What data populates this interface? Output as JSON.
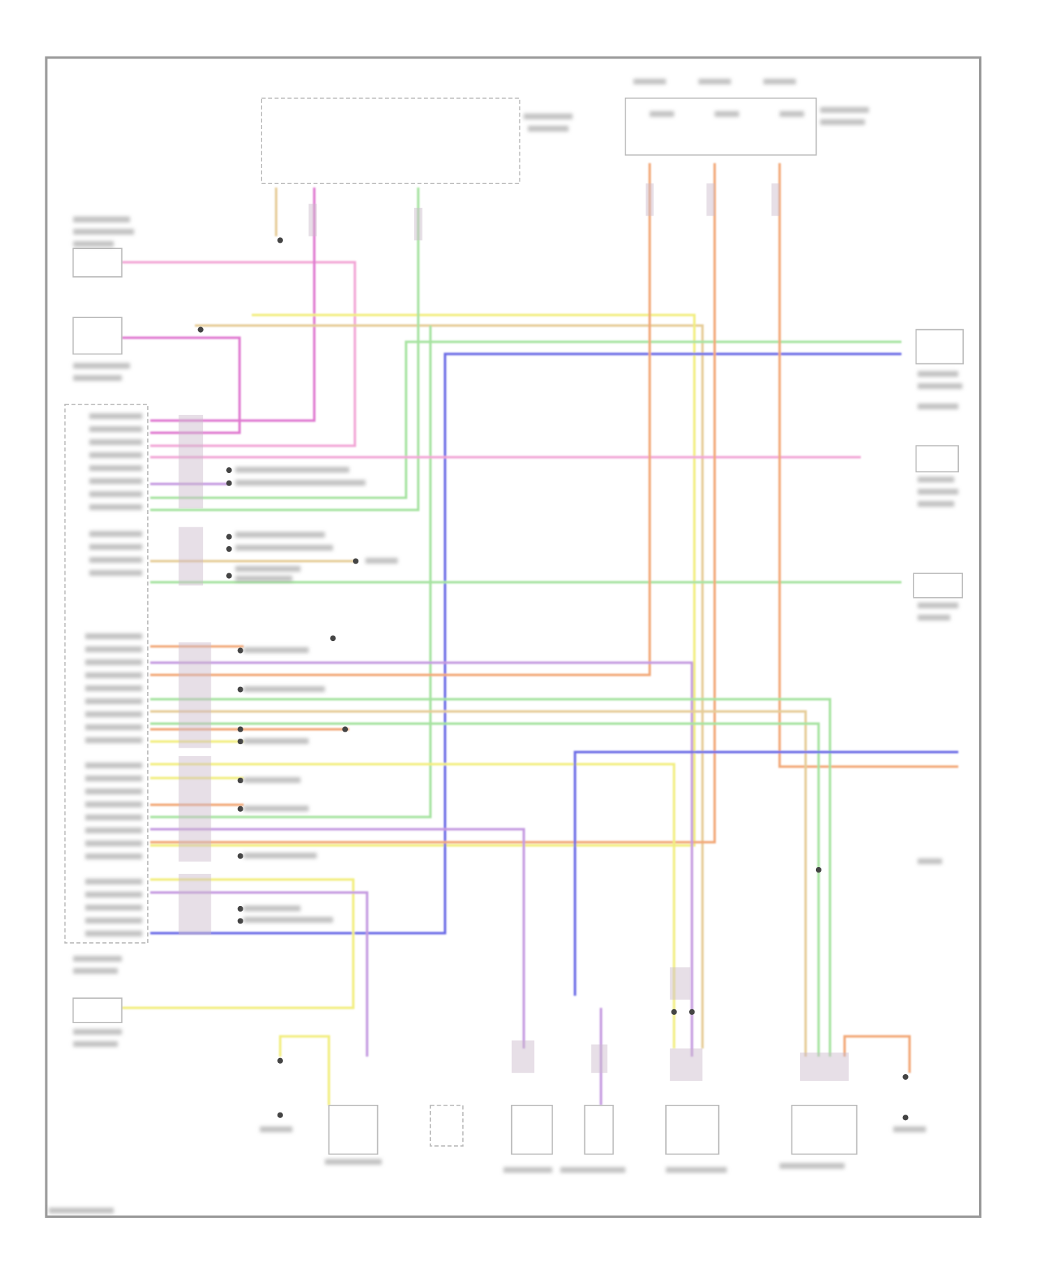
{
  "colors": {
    "frame": "#9a9a9a",
    "pink": "#f2a6d6",
    "magenta": "#e07ad0",
    "violet": "#c49ae0",
    "green": "#a6e3a0",
    "blue": "#6a6ae6",
    "orange": "#f2a878",
    "yellow": "#f2ee80",
    "tan": "#e6cc98",
    "label": "#8c8c8c",
    "connector": "#c9b9c9"
  }
}
